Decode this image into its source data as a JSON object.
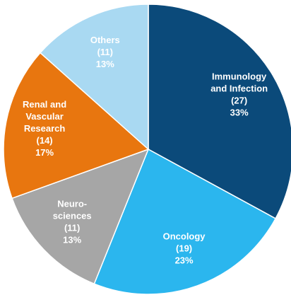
{
  "chart_data": {
    "type": "pie",
    "categories": [
      [
        "Immunology",
        "and Infection"
      ],
      [
        "Oncology"
      ],
      [
        "Neuro-",
        "sciences"
      ],
      [
        "Renal and",
        "Vascular",
        "Research"
      ],
      [
        "Others"
      ]
    ],
    "values": [
      27,
      19,
      11,
      14,
      11
    ],
    "value_labels": [
      "(27)",
      "(19)",
      "(11)",
      "(14)",
      "(11)"
    ],
    "percent_labels": [
      "33%",
      "23%",
      "13%",
      "17%",
      "13%"
    ],
    "colors": [
      "#0b4a7a",
      "#2bb6ee",
      "#a6a6a6",
      "#e8760f",
      "#a9d9f2"
    ]
  }
}
